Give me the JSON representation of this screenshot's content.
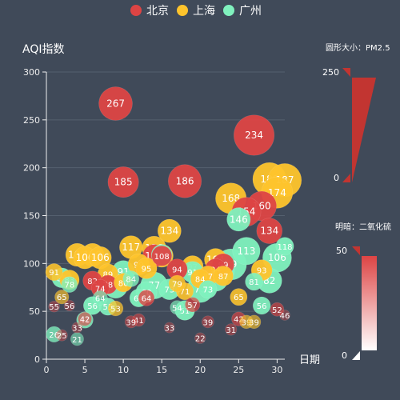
{
  "chart_data": {
    "type": "scatter",
    "title": "AQI指数",
    "xlabel": "日期",
    "ylabel": "AQI指数",
    "xlim": [
      0,
      31
    ],
    "ylim": [
      0,
      300
    ],
    "x_ticks": [
      "0",
      "5",
      "10",
      "15",
      "20",
      "25",
      "30"
    ],
    "y_ticks": [
      "0",
      "50",
      "100",
      "150",
      "200",
      "250",
      "300"
    ],
    "legend": {
      "position": "top-center",
      "entries": [
        "北京",
        "上海",
        "广州"
      ]
    },
    "visual_maps": [
      {
        "label": "圆形大小：PM2.5",
        "min_label": "0",
        "max_label": "250",
        "encodes": "size"
      },
      {
        "label": "明暗：二氧化硫",
        "min_label": "0",
        "max_label": "50",
        "encodes": "opacity"
      }
    ],
    "series": [
      {
        "name": "北京",
        "color": "#dd4444",
        "points": [
          [
            1,
            55,
            9
          ],
          [
            2,
            25,
            11
          ],
          [
            3,
            56,
            7
          ],
          [
            4,
            33,
            7
          ],
          [
            5,
            42,
            24
          ],
          [
            6,
            82,
            58
          ],
          [
            7,
            74,
            49
          ],
          [
            8,
            78,
            55
          ],
          [
            9,
            267,
            144
          ],
          [
            10,
            185,
            127
          ],
          [
            11,
            39,
            16
          ],
          [
            12,
            41,
            19
          ],
          [
            13,
            64,
            38
          ],
          [
            14,
            108,
            79
          ],
          [
            15,
            108,
            63
          ],
          [
            16,
            33,
            6
          ],
          [
            17,
            94,
            66
          ],
          [
            18,
            186,
            142
          ],
          [
            19,
            57,
            31
          ],
          [
            20,
            22,
            8
          ],
          [
            21,
            39,
            15
          ],
          [
            22,
            94,
            69
          ],
          [
            23,
            99,
            73
          ],
          [
            24,
            31,
            12
          ],
          [
            25,
            42,
            27
          ],
          [
            26,
            154,
            117
          ],
          [
            27,
            234,
            185
          ],
          [
            28,
            160,
            120
          ],
          [
            29,
            134,
            96
          ],
          [
            30,
            52,
            24
          ],
          [
            31,
            46,
            5
          ]
        ]
      },
      {
        "name": "上海",
        "color": "#fec42c",
        "points": [
          [
            1,
            91,
            45
          ],
          [
            2,
            65,
            27
          ],
          [
            3,
            83,
            60
          ],
          [
            4,
            109,
            81
          ],
          [
            5,
            106,
            77
          ],
          [
            6,
            109,
            81
          ],
          [
            7,
            106,
            77
          ],
          [
            8,
            89,
            65
          ],
          [
            9,
            53,
            33
          ],
          [
            10,
            80,
            55
          ],
          [
            11,
            117,
            81
          ],
          [
            12,
            99,
            71
          ],
          [
            13,
            95,
            69
          ],
          [
            14,
            116,
            87
          ],
          [
            15,
            108,
            80
          ],
          [
            16,
            134,
            83
          ],
          [
            17,
            79,
            43
          ],
          [
            18,
            71,
            46
          ],
          [
            19,
            97,
            71
          ],
          [
            20,
            84,
            57
          ],
          [
            21,
            87,
            63
          ],
          [
            22,
            104,
            77
          ],
          [
            23,
            87,
            62
          ],
          [
            24,
            168,
            128
          ],
          [
            25,
            65,
            45
          ],
          [
            26,
            39,
            24
          ],
          [
            27,
            39,
            24
          ],
          [
            28,
            93,
            68
          ],
          [
            29,
            188,
            143
          ],
          [
            30,
            174,
            131
          ],
          [
            31,
            187,
            143
          ]
        ]
      },
      {
        "name": "广州",
        "color": "#80f1be",
        "points": [
          [
            1,
            26,
            37
          ],
          [
            2,
            85,
            62
          ],
          [
            3,
            78,
            38
          ],
          [
            4,
            21,
            21
          ],
          [
            5,
            41,
            42
          ],
          [
            6,
            56,
            52
          ],
          [
            7,
            64,
            30
          ],
          [
            8,
            55,
            48
          ],
          [
            9,
            76,
            85
          ],
          [
            10,
            91,
            81
          ],
          [
            11,
            84,
            39
          ],
          [
            12,
            64,
            51
          ],
          [
            13,
            70,
            69
          ],
          [
            14,
            77,
            105
          ],
          [
            15,
            109,
            68
          ],
          [
            16,
            73,
            68
          ],
          [
            17,
            54,
            27
          ],
          [
            18,
            51,
            61
          ],
          [
            19,
            91,
            71
          ],
          [
            20,
            73,
            102
          ],
          [
            21,
            73,
            50
          ],
          [
            22,
            84,
            94
          ],
          [
            23,
            93,
            77
          ],
          [
            24,
            99,
            130
          ],
          [
            25,
            146,
            84
          ],
          [
            26,
            113,
            108
          ],
          [
            27,
            81,
            48
          ],
          [
            28,
            56,
            48
          ],
          [
            29,
            82,
            92
          ],
          [
            30,
            106,
            116
          ],
          [
            31,
            118,
            50
          ]
        ]
      }
    ]
  }
}
